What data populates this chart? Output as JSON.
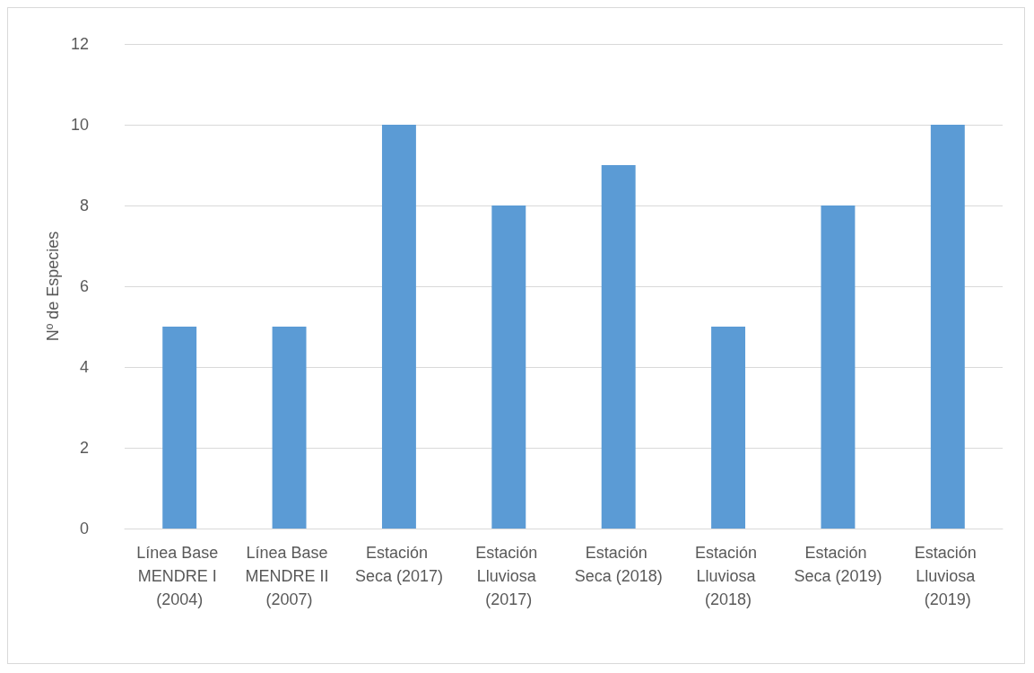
{
  "chart_data": {
    "type": "bar",
    "ylabel": "Nº de Especies",
    "categories": [
      "Línea Base MENDRE I (2004)",
      "Línea Base MENDRE II (2007)",
      "Estación Seca (2017)",
      "Estación Lluviosa (2017)",
      "Estación Seca (2018)",
      "Estación Lluviosa (2018)",
      "Estación Seca (2019)",
      "Estación Lluviosa (2019)"
    ],
    "values": [
      5,
      5,
      10,
      8,
      9,
      5,
      8,
      10
    ],
    "color": "#5b9bd5",
    "ylim": [
      0,
      12
    ],
    "yticks": [
      0,
      2,
      4,
      6,
      8,
      10,
      12
    ],
    "grid": "y"
  }
}
